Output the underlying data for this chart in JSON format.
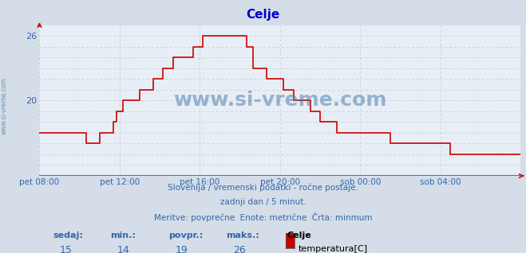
{
  "title": "Celje",
  "bg_color": "#d4dde8",
  "plot_bg_color": "#e8eef5",
  "grid_color": "#c8d0dc",
  "line_color": "#cc0000",
  "axis_color": "#0000cc",
  "text_color": "#3366aa",
  "ylim": [
    13,
    27
  ],
  "ytick_vals": [
    20,
    26
  ],
  "ytick_labels": [
    "20",
    "26"
  ],
  "xtick_labels": [
    "pet 08:00",
    "pet 12:00",
    "pet 16:00",
    "pet 20:00",
    "sob 00:00",
    "sob 04:00"
  ],
  "xtick_positions": [
    0.0,
    0.1667,
    0.3333,
    0.5,
    0.6667,
    0.8333
  ],
  "subtitle_lines": [
    "Slovenija / vremenski podatki - ročne postaje.",
    "zadnji dan / 5 minut.",
    "Meritve: povprečne  Enote: metrične  Črta: minmum"
  ],
  "legend_labels": [
    "sedaj:",
    "min.:",
    "povpr.:",
    "maks.:"
  ],
  "legend_values": [
    "15",
    "14",
    "19",
    "26"
  ],
  "legend_station": "Celje",
  "legend_series": "temperatura[C]",
  "watermark": "www.si-vreme.com",
  "ylabel_text": "www.si-vreme.com",
  "time_data": [
    0.0,
    0.007,
    0.014,
    0.021,
    0.028,
    0.035,
    0.042,
    0.049,
    0.056,
    0.063,
    0.069,
    0.076,
    0.083,
    0.09,
    0.097,
    0.104,
    0.111,
    0.118,
    0.125,
    0.132,
    0.139,
    0.146,
    0.153,
    0.16,
    0.167,
    0.174,
    0.181,
    0.188,
    0.194,
    0.201,
    0.208,
    0.215,
    0.222,
    0.229,
    0.236,
    0.243,
    0.25,
    0.257,
    0.264,
    0.271,
    0.278,
    0.285,
    0.292,
    0.299,
    0.306,
    0.313,
    0.319,
    0.326,
    0.333,
    0.34,
    0.347,
    0.354,
    0.361,
    0.368,
    0.375,
    0.382,
    0.389,
    0.396,
    0.403,
    0.41,
    0.417,
    0.424,
    0.431,
    0.438,
    0.444,
    0.451,
    0.458,
    0.465,
    0.472,
    0.479,
    0.486,
    0.493,
    0.5,
    0.507,
    0.514,
    0.521,
    0.528,
    0.535,
    0.542,
    0.549,
    0.556,
    0.563,
    0.569,
    0.576,
    0.583,
    0.59,
    0.597,
    0.604,
    0.611,
    0.618,
    0.625,
    0.632,
    0.639,
    0.646,
    0.653,
    0.66,
    0.667,
    0.674,
    0.681,
    0.688,
    0.694,
    0.701,
    0.708,
    0.715,
    0.722,
    0.729,
    0.736,
    0.743,
    0.75,
    0.757,
    0.764,
    0.771,
    0.778,
    0.785,
    0.792,
    0.799,
    0.806,
    0.813,
    0.819,
    0.826,
    0.833,
    0.84,
    0.847,
    0.854,
    0.861,
    0.868,
    0.875,
    0.882,
    0.889,
    0.896,
    0.903,
    0.91,
    0.917,
    0.924,
    0.931,
    0.938,
    0.944,
    0.951,
    0.958,
    0.965,
    0.972,
    0.979,
    0.986,
    0.993,
    1.0
  ],
  "temp_data": [
    17,
    17,
    17,
    17,
    17,
    17,
    17,
    17,
    17,
    17,
    17,
    17,
    17,
    17,
    16,
    16,
    16,
    16,
    17,
    17,
    17,
    17,
    18,
    19,
    19,
    20,
    20,
    20,
    20,
    20,
    21,
    21,
    21,
    21,
    22,
    22,
    22,
    23,
    23,
    23,
    24,
    24,
    24,
    24,
    24,
    24,
    25,
    25,
    25,
    26,
    26,
    26,
    26,
    26,
    26,
    26,
    26,
    26,
    26,
    26,
    26,
    26,
    25,
    25,
    23,
    23,
    23,
    23,
    22,
    22,
    22,
    22,
    22,
    21,
    21,
    21,
    20,
    20,
    20,
    20,
    20,
    19,
    19,
    19,
    18,
    18,
    18,
    18,
    18,
    17,
    17,
    17,
    17,
    17,
    17,
    17,
    17,
    17,
    17,
    17,
    17,
    17,
    17,
    17,
    17,
    16,
    16,
    16,
    16,
    16,
    16,
    16,
    16,
    16,
    16,
    16,
    16,
    16,
    16,
    16,
    16,
    16,
    16,
    15,
    15,
    15,
    15,
    15,
    15,
    15,
    15,
    15,
    15,
    15,
    15,
    15,
    15,
    15,
    15,
    15,
    15,
    15,
    15,
    15,
    15
  ]
}
